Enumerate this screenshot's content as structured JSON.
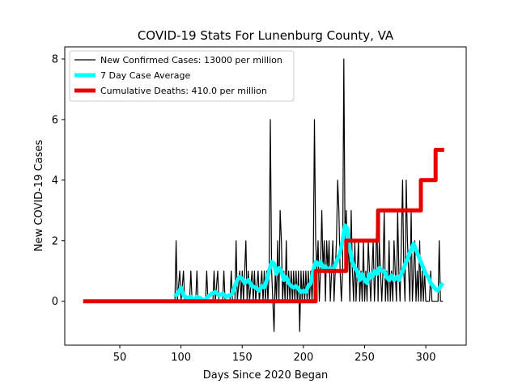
{
  "chart_data": {
    "type": "line",
    "title": "COVID-19 Stats For Lunenburg County, VA",
    "xlabel": "Days Since 2020 Began",
    "ylabel": "New COVID-19 Cases",
    "xlim": [
      5,
      333
    ],
    "ylim": [
      -1.45,
      8.4
    ],
    "xticks": [
      50,
      100,
      150,
      200,
      250,
      300
    ],
    "yticks": [
      0,
      2,
      4,
      6,
      8
    ],
    "grid": false,
    "legend_position": "top-left",
    "series": [
      {
        "name": "New Confirmed Cases: 13000 per million",
        "color": "#000000",
        "points": [
          [
            95,
            0
          ],
          [
            96,
            2
          ],
          [
            97,
            0
          ],
          [
            99,
            1
          ],
          [
            100,
            0
          ],
          [
            102,
            1
          ],
          [
            103,
            0
          ],
          [
            107,
            0
          ],
          [
            108,
            1
          ],
          [
            109,
            0
          ],
          [
            112,
            0
          ],
          [
            113,
            1
          ],
          [
            114,
            0
          ],
          [
            120,
            0
          ],
          [
            121,
            1
          ],
          [
            122,
            0
          ],
          [
            126,
            0
          ],
          [
            127,
            1
          ],
          [
            128,
            0
          ],
          [
            130,
            1
          ],
          [
            131,
            0
          ],
          [
            134,
            0
          ],
          [
            135,
            1
          ],
          [
            136,
            0
          ],
          [
            140,
            0
          ],
          [
            141,
            1
          ],
          [
            142,
            0
          ],
          [
            144,
            0
          ],
          [
            145,
            2
          ],
          [
            146,
            0
          ],
          [
            148,
            1
          ],
          [
            149,
            0
          ],
          [
            150,
            1
          ],
          [
            151,
            0
          ],
          [
            153,
            2
          ],
          [
            154,
            0
          ],
          [
            155,
            1
          ],
          [
            156,
            0
          ],
          [
            158,
            1
          ],
          [
            159,
            0
          ],
          [
            160,
            1
          ],
          [
            161,
            0
          ],
          [
            163,
            1
          ],
          [
            164,
            0
          ],
          [
            166,
            1
          ],
          [
            167,
            0
          ],
          [
            168,
            1
          ],
          [
            169,
            0
          ],
          [
            170,
            1
          ],
          [
            171,
            0
          ],
          [
            172,
            1
          ],
          [
            173,
            6
          ],
          [
            174,
            1
          ],
          [
            175,
            0
          ],
          [
            176,
            -1
          ],
          [
            177,
            1
          ],
          [
            178,
            0
          ],
          [
            179,
            2
          ],
          [
            180,
            0
          ],
          [
            181,
            3
          ],
          [
            182,
            2
          ],
          [
            183,
            0
          ],
          [
            184,
            1
          ],
          [
            185,
            0
          ],
          [
            186,
            2
          ],
          [
            187,
            0
          ],
          [
            188,
            1
          ],
          [
            189,
            0
          ],
          [
            190,
            1
          ],
          [
            191,
            0
          ],
          [
            192,
            1
          ],
          [
            193,
            0
          ],
          [
            194,
            1
          ],
          [
            195,
            0
          ],
          [
            196,
            1
          ],
          [
            197,
            -1
          ],
          [
            198,
            1
          ],
          [
            199,
            0
          ],
          [
            200,
            1
          ],
          [
            201,
            0
          ],
          [
            202,
            1
          ],
          [
            203,
            0
          ],
          [
            204,
            1
          ],
          [
            205,
            0
          ],
          [
            206,
            1
          ],
          [
            207,
            0
          ],
          [
            208,
            1
          ],
          [
            209,
            6
          ],
          [
            210,
            2
          ],
          [
            211,
            1
          ],
          [
            212,
            2
          ],
          [
            213,
            0
          ],
          [
            214,
            1
          ],
          [
            215,
            3
          ],
          [
            216,
            1
          ],
          [
            217,
            2
          ],
          [
            218,
            0
          ],
          [
            219,
            2
          ],
          [
            220,
            1
          ],
          [
            221,
            2
          ],
          [
            222,
            0
          ],
          [
            223,
            1
          ],
          [
            224,
            2
          ],
          [
            225,
            0
          ],
          [
            226,
            1
          ],
          [
            227,
            2
          ],
          [
            228,
            4
          ],
          [
            229,
            3
          ],
          [
            230,
            1
          ],
          [
            231,
            0
          ],
          [
            232,
            1
          ],
          [
            233,
            8
          ],
          [
            234,
            2
          ],
          [
            235,
            3
          ],
          [
            236,
            1
          ],
          [
            237,
            2
          ],
          [
            238,
            0
          ],
          [
            239,
            3
          ],
          [
            240,
            1
          ],
          [
            241,
            0
          ],
          [
            242,
            2
          ],
          [
            243,
            0
          ],
          [
            244,
            1
          ],
          [
            245,
            2
          ],
          [
            246,
            0
          ],
          [
            247,
            1
          ],
          [
            248,
            0
          ],
          [
            249,
            2
          ],
          [
            250,
            0
          ],
          [
            251,
            1
          ],
          [
            252,
            0
          ],
          [
            253,
            2
          ],
          [
            254,
            1
          ],
          [
            255,
            0
          ],
          [
            256,
            1
          ],
          [
            257,
            2
          ],
          [
            258,
            0
          ],
          [
            259,
            1
          ],
          [
            260,
            3
          ],
          [
            261,
            0
          ],
          [
            262,
            2
          ],
          [
            263,
            1
          ],
          [
            264,
            0
          ],
          [
            265,
            1
          ],
          [
            266,
            3
          ],
          [
            267,
            0
          ],
          [
            268,
            1
          ],
          [
            269,
            0
          ],
          [
            270,
            2
          ],
          [
            271,
            0
          ],
          [
            272,
            1
          ],
          [
            273,
            0
          ],
          [
            274,
            2
          ],
          [
            275,
            1
          ],
          [
            276,
            0
          ],
          [
            277,
            3
          ],
          [
            278,
            1
          ],
          [
            279,
            0
          ],
          [
            280,
            2
          ],
          [
            281,
            4
          ],
          [
            282,
            1
          ],
          [
            283,
            0
          ],
          [
            284,
            4
          ],
          [
            285,
            2
          ],
          [
            286,
            1
          ],
          [
            287,
            0
          ],
          [
            288,
            3
          ],
          [
            289,
            0
          ],
          [
            290,
            1
          ],
          [
            291,
            2
          ],
          [
            292,
            0
          ],
          [
            293,
            1
          ],
          [
            294,
            0
          ],
          [
            295,
            2
          ],
          [
            296,
            0
          ],
          [
            297,
            1
          ],
          [
            298,
            0
          ],
          [
            299,
            1
          ],
          [
            300,
            0
          ],
          [
            303,
            0
          ],
          [
            304,
            1
          ],
          [
            305,
            0
          ],
          [
            310,
            0
          ],
          [
            311,
            2
          ],
          [
            312,
            0
          ],
          [
            314,
            0
          ]
        ]
      },
      {
        "name": "7 Day Case Average",
        "color": "#00ffff",
        "points": [
          [
            95,
            0.15
          ],
          [
            98,
            0.3
          ],
          [
            100,
            0.45
          ],
          [
            102,
            0.2
          ],
          [
            105,
            0.1
          ],
          [
            108,
            0.15
          ],
          [
            110,
            0.0
          ],
          [
            113,
            0.15
          ],
          [
            116,
            0.1
          ],
          [
            119,
            0.0
          ],
          [
            122,
            0.15
          ],
          [
            125,
            0.25
          ],
          [
            128,
            0.3
          ],
          [
            131,
            0.2
          ],
          [
            134,
            0.25
          ],
          [
            137,
            0.15
          ],
          [
            140,
            0.2
          ],
          [
            142,
            0.25
          ],
          [
            144,
            0.5
          ],
          [
            146,
            0.7
          ],
          [
            148,
            0.8
          ],
          [
            150,
            0.75
          ],
          [
            152,
            0.6
          ],
          [
            155,
            0.7
          ],
          [
            158,
            0.5
          ],
          [
            161,
            0.45
          ],
          [
            164,
            0.35
          ],
          [
            166,
            0.5
          ],
          [
            168,
            0.45
          ],
          [
            170,
            0.7
          ],
          [
            172,
            1.0
          ],
          [
            174,
            1.3
          ],
          [
            176,
            1.25
          ],
          [
            178,
            0.9
          ],
          [
            180,
            1.1
          ],
          [
            182,
            1.0
          ],
          [
            184,
            0.7
          ],
          [
            186,
            0.8
          ],
          [
            188,
            0.6
          ],
          [
            190,
            0.5
          ],
          [
            192,
            0.45
          ],
          [
            194,
            0.5
          ],
          [
            196,
            0.4
          ],
          [
            198,
            0.3
          ],
          [
            200,
            0.35
          ],
          [
            202,
            0.3
          ],
          [
            204,
            0.5
          ],
          [
            206,
            0.6
          ],
          [
            208,
            1.0
          ],
          [
            210,
            1.3
          ],
          [
            212,
            1.2
          ],
          [
            214,
            1.3
          ],
          [
            216,
            1.1
          ],
          [
            218,
            1.15
          ],
          [
            220,
            1.0
          ],
          [
            222,
            1.1
          ],
          [
            224,
            1.0
          ],
          [
            226,
            1.2
          ],
          [
            228,
            1.4
          ],
          [
            230,
            1.6
          ],
          [
            232,
            2.0
          ],
          [
            234,
            2.5
          ],
          [
            236,
            2.4
          ],
          [
            238,
            1.7
          ],
          [
            240,
            1.3
          ],
          [
            242,
            1.1
          ],
          [
            244,
            1.0
          ],
          [
            246,
            0.7
          ],
          [
            248,
            0.9
          ],
          [
            250,
            0.7
          ],
          [
            252,
            0.6
          ],
          [
            254,
            0.9
          ],
          [
            256,
            0.8
          ],
          [
            258,
            1.0
          ],
          [
            260,
            0.9
          ],
          [
            262,
            1.1
          ],
          [
            264,
            1.0
          ],
          [
            266,
            1.0
          ],
          [
            268,
            0.8
          ],
          [
            270,
            0.7
          ],
          [
            272,
            0.85
          ],
          [
            274,
            0.7
          ],
          [
            276,
            0.8
          ],
          [
            278,
            0.7
          ],
          [
            280,
            0.9
          ],
          [
            282,
            1.1
          ],
          [
            284,
            1.3
          ],
          [
            286,
            1.5
          ],
          [
            288,
            1.7
          ],
          [
            290,
            1.9
          ],
          [
            292,
            1.7
          ],
          [
            294,
            1.5
          ],
          [
            296,
            1.3
          ],
          [
            298,
            1.1
          ],
          [
            300,
            0.9
          ],
          [
            302,
            0.8
          ],
          [
            304,
            0.6
          ],
          [
            306,
            0.5
          ],
          [
            308,
            0.4
          ],
          [
            310,
            0.35
          ],
          [
            312,
            0.5
          ],
          [
            314,
            0.6
          ]
        ]
      },
      {
        "name": "Cumulative Deaths: 410.0 per million",
        "color": "#e60000",
        "points": [
          [
            20,
            0
          ],
          [
            210,
            0
          ],
          [
            210,
            1
          ],
          [
            235,
            1
          ],
          [
            235,
            2
          ],
          [
            261,
            2
          ],
          [
            261,
            3
          ],
          [
            296,
            3
          ],
          [
            296,
            4
          ],
          [
            308,
            4
          ],
          [
            308,
            5
          ],
          [
            315,
            5
          ]
        ]
      }
    ]
  }
}
